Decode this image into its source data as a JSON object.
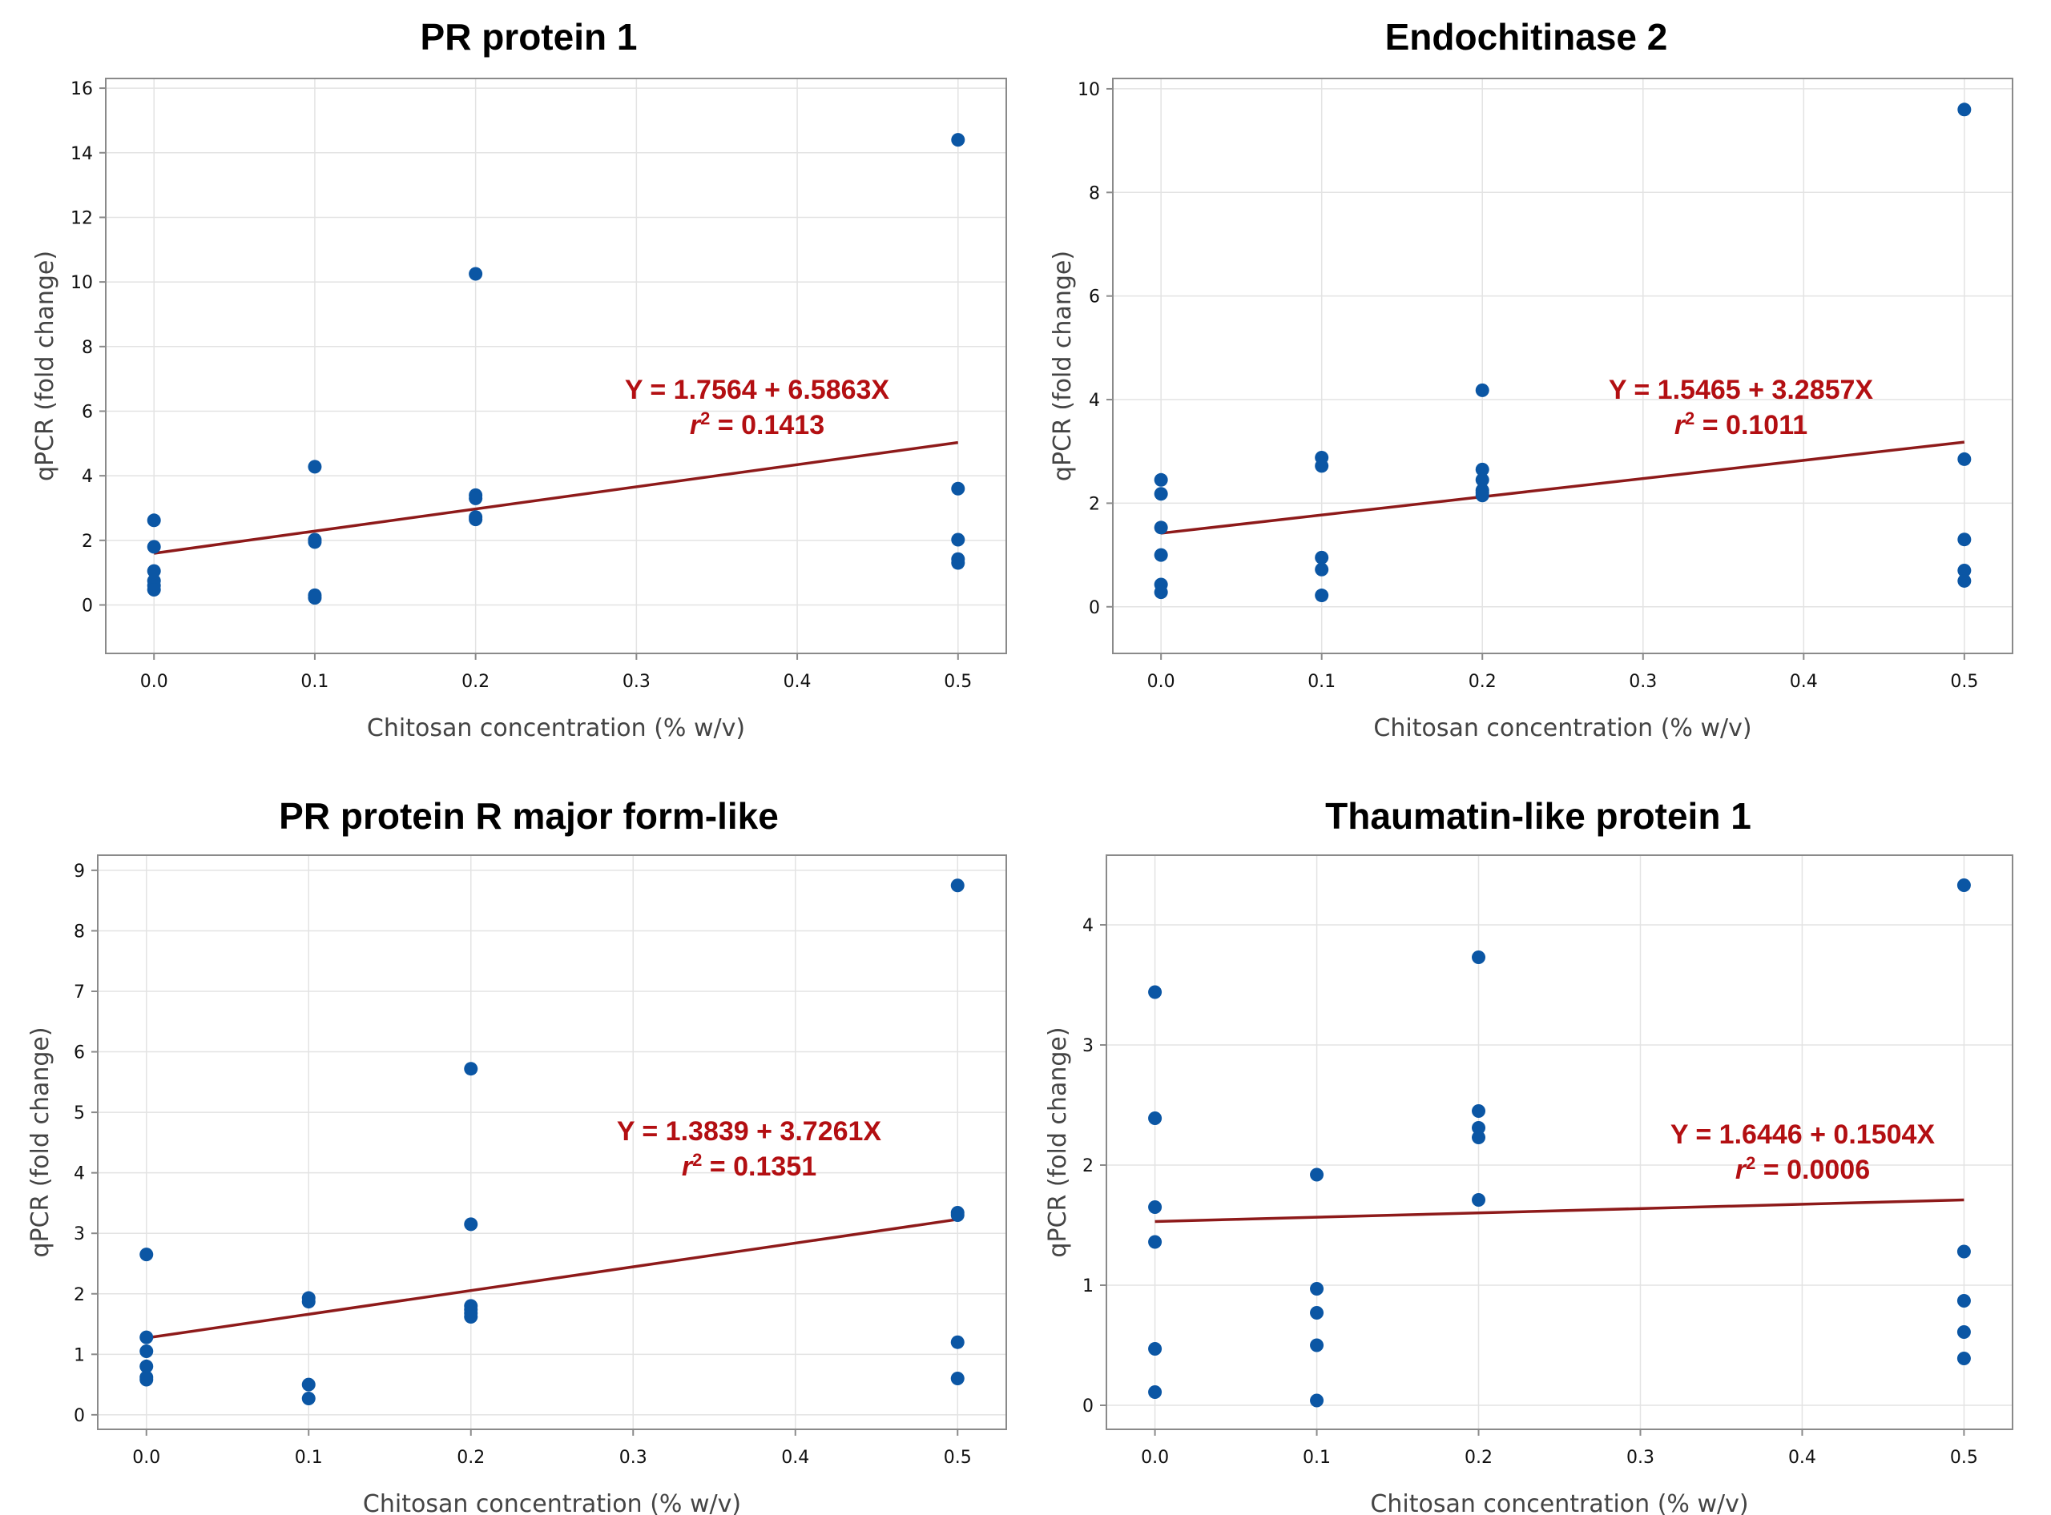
{
  "chart_data": [
    {
      "type": "scatter",
      "title": "PR protein 1",
      "xlabel": "Chitosan concentration (% w/v)",
      "ylabel": "qPCR (fold change)",
      "xlim": [
        -0.03,
        0.53
      ],
      "ylim": [
        -1.5,
        16.3
      ],
      "xticks": [
        0.0,
        0.1,
        0.2,
        0.3,
        0.4,
        0.5
      ],
      "xtick_labels": [
        "0.0",
        "0.1",
        "0.2",
        "0.3",
        "0.4",
        "0.5"
      ],
      "yticks": [
        0,
        2,
        4,
        6,
        8,
        10,
        12,
        14,
        16
      ],
      "ytick_labels": [
        "0",
        "2",
        "4",
        "6",
        "8",
        "10",
        "12",
        "14",
        "16"
      ],
      "grid": true,
      "points": {
        "x": [
          0,
          0,
          0,
          0,
          0,
          0,
          0.1,
          0.1,
          0.1,
          0.1,
          0.1,
          0.2,
          0.2,
          0.2,
          0.2,
          0.2,
          0.5,
          0.5,
          0.5,
          0.5,
          0.5
        ],
        "y": [
          2.62,
          1.8,
          1.05,
          0.75,
          0.6,
          0.47,
          4.28,
          2.02,
          1.95,
          0.3,
          0.22,
          10.25,
          3.4,
          3.3,
          2.72,
          2.65,
          14.4,
          3.6,
          2.02,
          1.42,
          1.3
        ]
      },
      "regression": {
        "intercept": 1.7564,
        "slope": 6.5863,
        "line_y_at_x0": 1.6,
        "line_y_at_x05": 5.03
      },
      "equation_text": "Y = 1.7564 + 6.5863X",
      "r2_label": "r",
      "r2_sup": "2",
      "r2_value_text": " = 0.1413",
      "point_color": "#0b56a4",
      "line_color": "#8e1a1a"
    },
    {
      "type": "scatter",
      "title": "Endochitinase 2",
      "xlabel": "Chitosan concentration (% w/v)",
      "ylabel": "qPCR (fold change)",
      "xlim": [
        -0.03,
        0.53
      ],
      "ylim": [
        -0.9,
        10.2
      ],
      "xticks": [
        0.0,
        0.1,
        0.2,
        0.3,
        0.4,
        0.5
      ],
      "xtick_labels": [
        "0.0",
        "0.1",
        "0.2",
        "0.3",
        "0.4",
        "0.5"
      ],
      "yticks": [
        0,
        2,
        4,
        6,
        8,
        10
      ],
      "ytick_labels": [
        "0",
        "2",
        "4",
        "6",
        "8",
        "10"
      ],
      "grid": true,
      "points": {
        "x": [
          0,
          0,
          0,
          0,
          0,
          0,
          0.1,
          0.1,
          0.1,
          0.1,
          0.1,
          0.2,
          0.2,
          0.2,
          0.2,
          0.2,
          0.2,
          0.5,
          0.5,
          0.5,
          0.5,
          0.5
        ],
        "y": [
          2.45,
          2.18,
          1.53,
          1.0,
          0.43,
          0.28,
          2.88,
          2.72,
          0.95,
          0.72,
          0.22,
          4.18,
          2.65,
          2.45,
          2.25,
          2.2,
          2.15,
          9.6,
          2.85,
          1.3,
          0.7,
          0.5
        ]
      },
      "regression": {
        "intercept": 1.5465,
        "slope": 3.2857,
        "line_y_at_x0": 1.42,
        "line_y_at_x05": 3.18
      },
      "equation_text": "Y = 1.5465 + 3.2857X",
      "r2_label": "r",
      "r2_sup": "2",
      "r2_value_text": " = 0.1011",
      "point_color": "#0b56a4",
      "line_color": "#8e1a1a"
    },
    {
      "type": "scatter",
      "title": "PR protein R major form-like",
      "xlabel": "Chitosan concentration (% w/v)",
      "ylabel": "qPCR (fold change)",
      "xlim": [
        -0.03,
        0.53
      ],
      "ylim": [
        -0.24,
        9.25
      ],
      "xticks": [
        0.0,
        0.1,
        0.2,
        0.3,
        0.4,
        0.5
      ],
      "xtick_labels": [
        "0.0",
        "0.1",
        "0.2",
        "0.3",
        "0.4",
        "0.5"
      ],
      "yticks": [
        0,
        1,
        2,
        3,
        4,
        5,
        6,
        7,
        8,
        9
      ],
      "ytick_labels": [
        "0",
        "1",
        "2",
        "3",
        "4",
        "5",
        "6",
        "7",
        "8",
        "9"
      ],
      "grid": true,
      "points": {
        "x": [
          0,
          0,
          0,
          0,
          0,
          0,
          0.1,
          0.1,
          0.1,
          0.1,
          0.2,
          0.2,
          0.2,
          0.2,
          0.2,
          0.2,
          0.5,
          0.5,
          0.5,
          0.5,
          0.5
        ],
        "y": [
          2.65,
          1.28,
          1.05,
          0.8,
          0.62,
          0.58,
          1.93,
          1.87,
          0.5,
          0.27,
          5.72,
          3.15,
          1.8,
          1.74,
          1.68,
          1.62,
          8.75,
          3.34,
          3.3,
          1.2,
          0.6
        ]
      },
      "regression": {
        "intercept": 1.3839,
        "slope": 3.7261,
        "line_y_at_x0": 1.27,
        "line_y_at_x05": 3.23
      },
      "equation_text": "Y = 1.3839 + 3.7261X",
      "r2_label": "r",
      "r2_sup": "2",
      "r2_value_text": " = 0.1351",
      "point_color": "#0b56a4",
      "line_color": "#8e1a1a"
    },
    {
      "type": "scatter",
      "title": "Thaumatin-like protein 1",
      "xlabel": "Chitosan concentration (% w/v)",
      "ylabel": "qPCR (fold change)",
      "xlim": [
        -0.03,
        0.53
      ],
      "ylim": [
        -0.2,
        4.58
      ],
      "xticks": [
        0.0,
        0.1,
        0.2,
        0.3,
        0.4,
        0.5
      ],
      "xtick_labels": [
        "0.0",
        "0.1",
        "0.2",
        "0.3",
        "0.4",
        "0.5"
      ],
      "yticks": [
        0,
        1,
        2,
        3,
        4
      ],
      "ytick_labels": [
        "0",
        "1",
        "2",
        "3",
        "4"
      ],
      "grid": true,
      "points": {
        "x": [
          0,
          0,
          0,
          0,
          0,
          0,
          0.1,
          0.1,
          0.1,
          0.1,
          0.1,
          0.2,
          0.2,
          0.2,
          0.2,
          0.2,
          0.5,
          0.5,
          0.5,
          0.5,
          0.5
        ],
        "y": [
          3.44,
          2.39,
          1.65,
          1.36,
          0.47,
          0.11,
          1.92,
          0.97,
          0.77,
          0.5,
          0.04,
          3.73,
          2.45,
          2.31,
          2.23,
          1.71,
          4.33,
          1.28,
          0.87,
          0.61,
          0.39
        ]
      },
      "regression": {
        "intercept": 1.6446,
        "slope": 0.1504,
        "line_y_at_x0": 1.53,
        "line_y_at_x05": 1.71
      },
      "equation_text": "Y = 1.6446 + 0.1504X",
      "r2_label": "r",
      "r2_sup": "2",
      "r2_value_text": " = 0.0006",
      "point_color": "#0b56a4",
      "line_color": "#8e1a1a"
    }
  ]
}
